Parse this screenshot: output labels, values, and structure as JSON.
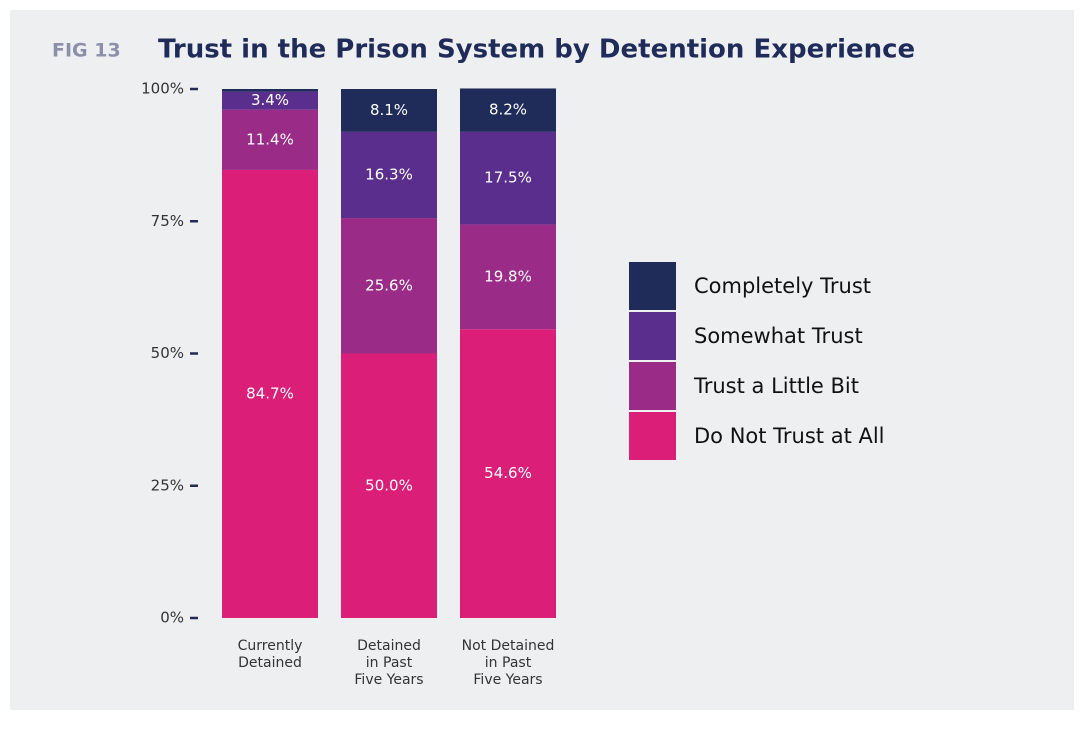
{
  "chart_data": {
    "type": "stacked-bar",
    "fig_label": "FIG 13",
    "title": "Trust in the Prison System by Detention Experience",
    "categories": [
      "Currently\nDetained",
      "Detained\nin Past\nFive Years",
      "Not Detained\nin Past\nFive Years"
    ],
    "series": [
      {
        "name": "Completely Trust",
        "color": "#1f2b58",
        "values": [
          0.5,
          8.1,
          8.2
        ],
        "value_labels": [
          null,
          "8.1%",
          "8.2%"
        ]
      },
      {
        "name": "Somewhat Trust",
        "color": "#5a2e8c",
        "values": [
          3.4,
          16.3,
          17.5
        ],
        "value_labels": [
          "3.4%",
          "16.3%",
          "17.5%"
        ]
      },
      {
        "name": "Trust a Little Bit",
        "color": "#9a2c88",
        "values": [
          11.4,
          25.6,
          19.8
        ],
        "value_labels": [
          "11.4%",
          "25.6%",
          "19.8%"
        ]
      },
      {
        "name": "Do Not Trust at All",
        "color": "#db1f78",
        "values": [
          84.7,
          50.0,
          54.6
        ],
        "value_labels": [
          "84.7%",
          "50.0%",
          "54.6%"
        ]
      }
    ],
    "ylim": [
      0,
      100
    ],
    "yticks": [
      {
        "value": 0,
        "label": "0%"
      },
      {
        "value": 25,
        "label": "25%"
      },
      {
        "value": 50,
        "label": "50%"
      },
      {
        "value": 75,
        "label": "75%"
      },
      {
        "value": 100,
        "label": "100%"
      }
    ],
    "legend": "right"
  }
}
